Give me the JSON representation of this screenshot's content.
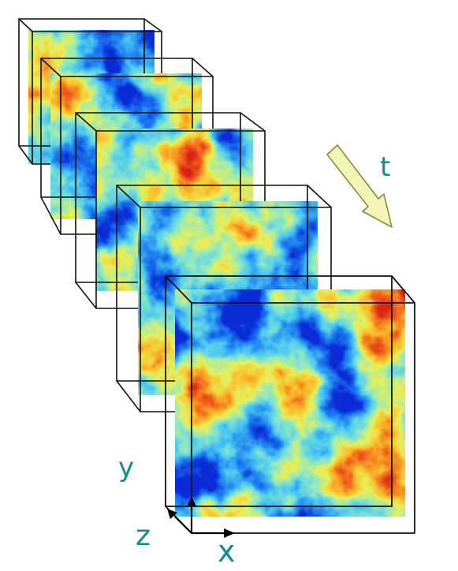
{
  "labels": {
    "time_axis": "t",
    "y_axis": "y",
    "z_axis": "z",
    "x_axis": "x"
  },
  "colors": {
    "label_teal": "#138a8c",
    "frame_stroke": "#111111",
    "time_arrow_fill": "#f3f4b6",
    "time_arrow_stroke": "#8a8a3a",
    "field_colormap": [
      "#0a2bd6",
      "#1c7bf0",
      "#49c8f2",
      "#8ce8c4",
      "#e9f05a",
      "#fbbd2a",
      "#f3641e",
      "#d71e12"
    ]
  },
  "volume_count": 5,
  "icons": {
    "time_arrow": "diagonal-arrow-icon",
    "axis_triad": "xyz-axes-icon"
  }
}
